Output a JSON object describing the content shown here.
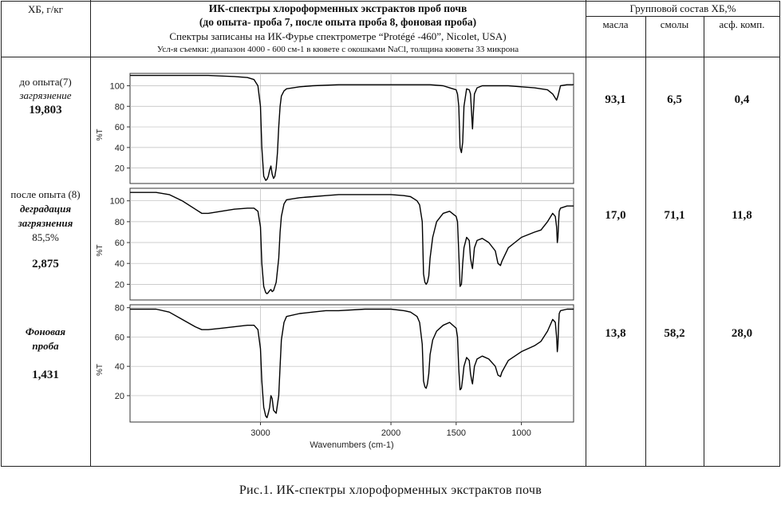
{
  "header": {
    "col1": "ХБ, г/кг",
    "title_line1": "ИК-спектры хлороформенных экстрактов проб  почв",
    "title_line2": "(до опыта- проба 7, после опыта проба 8, фоновая проба)",
    "title_line3": "Спектры записаны на ИК-Фурье спектрометре “Protégé -460”, Nicolet, USA)",
    "title_line4": "Усл-я съемки: диапазон 4000 - 600 см-1 в кювете с окошками NaCl, толщина кюветы 33 микрона",
    "group_title": "Групповой состав ХБ,%",
    "sub_cols": [
      "масла",
      "смолы",
      "асф. комп."
    ]
  },
  "rows": [
    {
      "label_lines": [
        {
          "text": "до опыта(7)",
          "style": "normal"
        },
        {
          "text": "загрязнение",
          "style": "italic"
        },
        {
          "text": "19,803",
          "style": "bold"
        }
      ],
      "values": [
        "93,1",
        "6,5",
        "0,4"
      ]
    },
    {
      "label_lines": [
        {
          "text": "после опыта (8)",
          "style": "normal"
        },
        {
          "text": "деградация",
          "style": "bolditalic"
        },
        {
          "text": "загрязнения",
          "style": "bolditalic"
        },
        {
          "text": "85,5%",
          "style": "normal"
        },
        {
          "text": "2,875",
          "style": "bold"
        }
      ],
      "values": [
        "17,0",
        "71,1",
        "11,8"
      ]
    },
    {
      "label_lines": [
        {
          "text": "Фоновая",
          "style": "bolditalic"
        },
        {
          "text": "проба",
          "style": "bolditalic"
        },
        {
          "text": "1,431",
          "style": "bold"
        }
      ],
      "values": [
        "13,8",
        "58,2",
        "28,0"
      ]
    }
  ],
  "caption": "Рис.1. ИК-спектры хлороформенных экстрактов почв",
  "chart_data": {
    "type": "line",
    "xlabel": "Wavenumbers (cm-1)",
    "ylabel": "%T",
    "x_reversed": true,
    "xlim": [
      4000,
      600
    ],
    "x_ticks": [
      3000,
      2000,
      1500,
      1000
    ],
    "panels": [
      {
        "ylim": [
          5,
          112
        ],
        "y_ticks": [
          20,
          40,
          60,
          80,
          100
        ],
        "x": [
          4000,
          3800,
          3600,
          3400,
          3200,
          3100,
          3050,
          3020,
          3000,
          2990,
          2975,
          2960,
          2950,
          2940,
          2930,
          2920,
          2910,
          2900,
          2890,
          2880,
          2870,
          2860,
          2850,
          2840,
          2820,
          2800,
          2750,
          2700,
          2600,
          2400,
          2200,
          2000,
          1800,
          1700,
          1600,
          1550,
          1500,
          1490,
          1480,
          1470,
          1460,
          1450,
          1440,
          1420,
          1400,
          1390,
          1380,
          1375,
          1370,
          1360,
          1340,
          1300,
          1200,
          1100,
          1000,
          900,
          800,
          760,
          730,
          720,
          700,
          650,
          600
        ],
        "y": [
          110,
          110,
          110,
          110,
          109,
          108,
          106,
          100,
          80,
          40,
          12,
          8,
          9,
          12,
          18,
          22,
          14,
          10,
          12,
          20,
          35,
          60,
          80,
          90,
          95,
          97,
          98,
          99,
          100,
          101,
          101,
          101,
          101,
          101,
          100,
          98,
          96,
          92,
          80,
          40,
          35,
          45,
          80,
          97,
          96,
          92,
          70,
          58,
          70,
          92,
          98,
          100,
          100,
          100,
          99,
          98,
          96,
          92,
          86,
          90,
          100,
          101,
          101
        ]
      },
      {
        "ylim": [
          5,
          112
        ],
        "y_ticks": [
          20,
          40,
          60,
          80,
          100
        ],
        "x": [
          4000,
          3800,
          3700,
          3600,
          3500,
          3450,
          3400,
          3300,
          3200,
          3100,
          3050,
          3020,
          3000,
          2990,
          2975,
          2960,
          2950,
          2940,
          2930,
          2920,
          2910,
          2900,
          2880,
          2860,
          2850,
          2840,
          2820,
          2800,
          2700,
          2600,
          2500,
          2400,
          2200,
          2000,
          1900,
          1850,
          1800,
          1780,
          1760,
          1750,
          1740,
          1730,
          1720,
          1710,
          1700,
          1680,
          1650,
          1600,
          1550,
          1500,
          1490,
          1480,
          1470,
          1460,
          1450,
          1440,
          1420,
          1400,
          1390,
          1380,
          1375,
          1370,
          1360,
          1340,
          1300,
          1250,
          1200,
          1180,
          1160,
          1150,
          1100,
          1050,
          1000,
          900,
          850,
          800,
          760,
          740,
          730,
          725,
          720,
          715,
          710,
          700,
          650,
          600
        ],
        "y": [
          108,
          108,
          106,
          100,
          92,
          88,
          88,
          90,
          92,
          93,
          93,
          90,
          75,
          40,
          18,
          12,
          11,
          12,
          14,
          15,
          13,
          14,
          22,
          45,
          70,
          85,
          97,
          101,
          103,
          104,
          105,
          106,
          106,
          106,
          105,
          104,
          100,
          96,
          80,
          30,
          22,
          20,
          22,
          28,
          45,
          65,
          80,
          88,
          90,
          85,
          80,
          50,
          18,
          20,
          40,
          55,
          65,
          62,
          45,
          38,
          35,
          42,
          55,
          62,
          64,
          60,
          52,
          40,
          38,
          42,
          55,
          60,
          65,
          70,
          72,
          80,
          88,
          85,
          75,
          60,
          65,
          80,
          90,
          93,
          95,
          95
        ]
      },
      {
        "ylim": [
          2,
          82
        ],
        "y_ticks": [
          20,
          40,
          60,
          80
        ],
        "x": [
          4000,
          3800,
          3700,
          3600,
          3500,
          3450,
          3400,
          3300,
          3200,
          3100,
          3050,
          3020,
          3000,
          2990,
          2975,
          2960,
          2950,
          2940,
          2930,
          2920,
          2910,
          2900,
          2880,
          2860,
          2850,
          2840,
          2820,
          2800,
          2700,
          2600,
          2500,
          2400,
          2200,
          2000,
          1900,
          1850,
          1800,
          1780,
          1760,
          1750,
          1740,
          1730,
          1720,
          1710,
          1700,
          1680,
          1650,
          1600,
          1550,
          1500,
          1490,
          1480,
          1470,
          1460,
          1450,
          1440,
          1420,
          1400,
          1390,
          1380,
          1375,
          1370,
          1360,
          1340,
          1300,
          1250,
          1200,
          1180,
          1160,
          1150,
          1100,
          1050,
          1000,
          900,
          850,
          800,
          760,
          740,
          730,
          725,
          720,
          715,
          710,
          700,
          650,
          600
        ],
        "y": [
          79,
          79,
          77,
          72,
          67,
          65,
          65,
          66,
          67,
          68,
          68,
          65,
          52,
          30,
          12,
          6,
          5,
          8,
          12,
          20,
          18,
          10,
          8,
          20,
          40,
          58,
          70,
          74,
          76,
          77,
          78,
          78,
          79,
          79,
          78,
          77,
          74,
          70,
          55,
          30,
          26,
          25,
          28,
          35,
          48,
          58,
          64,
          68,
          70,
          66,
          60,
          38,
          24,
          25,
          32,
          40,
          46,
          44,
          35,
          30,
          28,
          32,
          40,
          45,
          47,
          45,
          40,
          34,
          33,
          36,
          44,
          47,
          50,
          54,
          57,
          64,
          72,
          70,
          60,
          50,
          55,
          68,
          76,
          78,
          79,
          79
        ]
      }
    ]
  }
}
